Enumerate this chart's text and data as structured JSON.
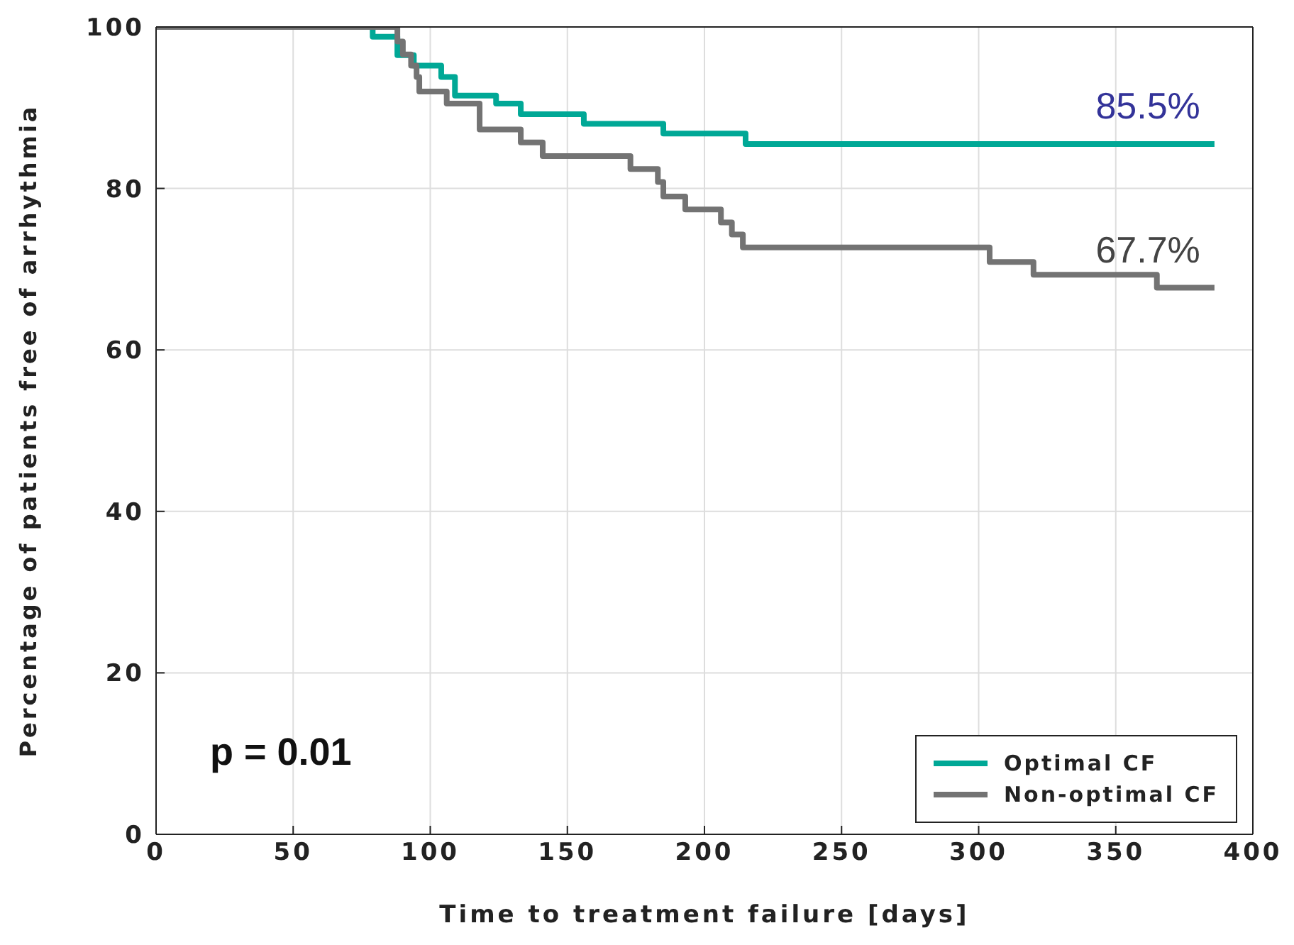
{
  "chart_data": {
    "type": "step",
    "xlabel": "Time to treatment failure [days]",
    "ylabel": "Percentage of patients free of arrhythmia",
    "series": [
      {
        "name": "Optimal CF",
        "color": "#00a896",
        "x": [
          0,
          79,
          88,
          94,
          104,
          109,
          124,
          133,
          156,
          185,
          215,
          386
        ],
        "values": [
          100,
          98.8,
          96.5,
          95.2,
          93.8,
          91.5,
          90.5,
          89.2,
          88,
          86.8,
          85.5,
          85.5
        ]
      },
      {
        "name": "Non-optimal CF",
        "color": "#737373",
        "x": [
          0,
          88,
          90,
          93,
          95,
          96,
          106,
          118,
          133,
          141,
          173,
          183,
          185,
          193,
          206,
          210,
          214,
          304,
          320,
          365,
          386
        ],
        "values": [
          100,
          98.2,
          96.6,
          95.2,
          93.8,
          92,
          90.5,
          87.3,
          85.7,
          84,
          82.4,
          80.8,
          79,
          77.4,
          75.8,
          74.3,
          72.7,
          70.9,
          69.3,
          67.7,
          67.7
        ]
      }
    ],
    "annotations": [
      {
        "text": "85.5%",
        "x": 386,
        "y": 85.5
      },
      {
        "text": "67.7%",
        "x": 386,
        "y": 67.7
      },
      "p = 0.01"
    ],
    "xlim": [
      0,
      400
    ],
    "xticks": [
      0,
      50,
      100,
      150,
      200,
      250,
      300,
      350,
      400
    ],
    "ylim": [
      0,
      100
    ],
    "yticks": [
      0,
      20,
      40,
      60,
      80,
      100
    ],
    "grid": true,
    "legend": "bottom right",
    "marker": "none",
    "line_style": "solid"
  }
}
